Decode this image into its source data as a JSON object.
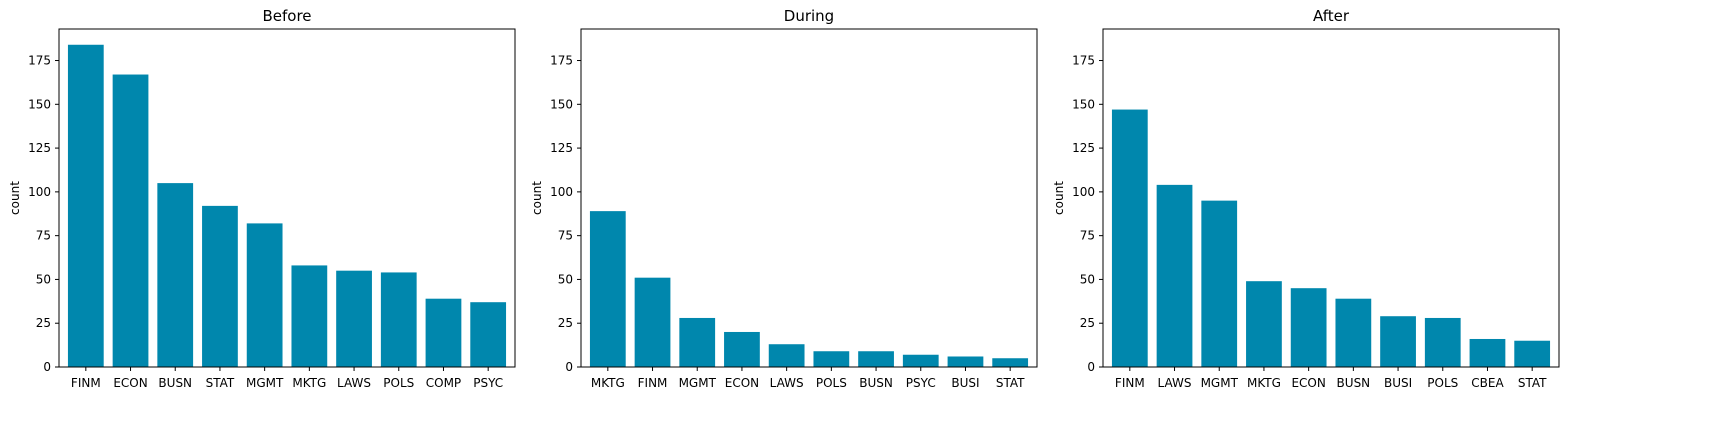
{
  "colors": {
    "bar": "#0087ad"
  },
  "chart_data": [
    {
      "type": "bar",
      "title": "Before",
      "ylabel": "count",
      "xlabel": "",
      "ylim": [
        0,
        193
      ],
      "yticks": [
        0,
        25,
        50,
        75,
        100,
        125,
        150,
        175
      ],
      "categories": [
        "FINM",
        "ECON",
        "BUSN",
        "STAT",
        "MGMT",
        "MKTG",
        "LAWS",
        "POLS",
        "COMP",
        "PSYC"
      ],
      "values": [
        184,
        167,
        105,
        92,
        82,
        58,
        55,
        54,
        39,
        37
      ]
    },
    {
      "type": "bar",
      "title": "During",
      "ylabel": "count",
      "xlabel": "",
      "ylim": [
        0,
        193
      ],
      "yticks": [
        0,
        25,
        50,
        75,
        100,
        125,
        150,
        175
      ],
      "categories": [
        "MKTG",
        "FINM",
        "MGMT",
        "ECON",
        "LAWS",
        "POLS",
        "BUSN",
        "PSYC",
        "BUSI",
        "STAT"
      ],
      "values": [
        89,
        51,
        28,
        20,
        13,
        9,
        9,
        7,
        6,
        5
      ]
    },
    {
      "type": "bar",
      "title": "After",
      "ylabel": "count",
      "xlabel": "",
      "ylim": [
        0,
        193
      ],
      "yticks": [
        0,
        25,
        50,
        75,
        100,
        125,
        150,
        175
      ],
      "categories": [
        "FINM",
        "LAWS",
        "MGMT",
        "MKTG",
        "ECON",
        "BUSN",
        "BUSI",
        "POLS",
        "CBEA",
        "STAT"
      ],
      "values": [
        147,
        104,
        95,
        49,
        45,
        39,
        29,
        28,
        16,
        15
      ]
    }
  ]
}
